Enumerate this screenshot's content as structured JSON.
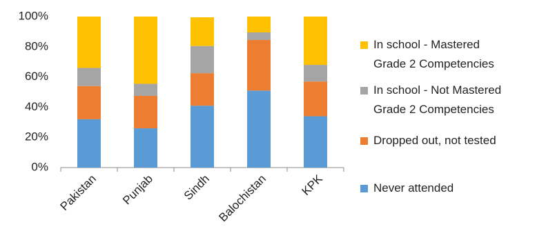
{
  "chart_data": {
    "type": "stacked_bar",
    "categories": [
      "Pakistan",
      "Punjab",
      "Sindh",
      "Balochistan",
      "KPK"
    ],
    "series": [
      {
        "name": "Never attended",
        "color": "#5b9bd5",
        "values": [
          32,
          26,
          41,
          51,
          34
        ]
      },
      {
        "name": "Dropped out, not tested",
        "color": "#ed7d31",
        "values": [
          22,
          21.5,
          21.5,
          33.5,
          23
        ]
      },
      {
        "name": "In school - Not Mastered Grade 2 Competencies",
        "color": "#a5a5a5",
        "values": [
          12,
          8,
          18,
          5,
          11
        ]
      },
      {
        "name": "In school - Mastered Grade 2 Competencies",
        "color": "#ffc000",
        "values": [
          34,
          44.5,
          19,
          10.5,
          32
        ]
      }
    ],
    "ylim": [
      0,
      100
    ],
    "yticks": [
      {
        "value": 0,
        "label": "0%"
      },
      {
        "value": 20,
        "label": "20%"
      },
      {
        "value": 40,
        "label": "40%"
      },
      {
        "value": 60,
        "label": "60%"
      },
      {
        "value": 80,
        "label": "80%"
      },
      {
        "value": 100,
        "label": "100%"
      }
    ],
    "grid": false,
    "legend": "right"
  }
}
